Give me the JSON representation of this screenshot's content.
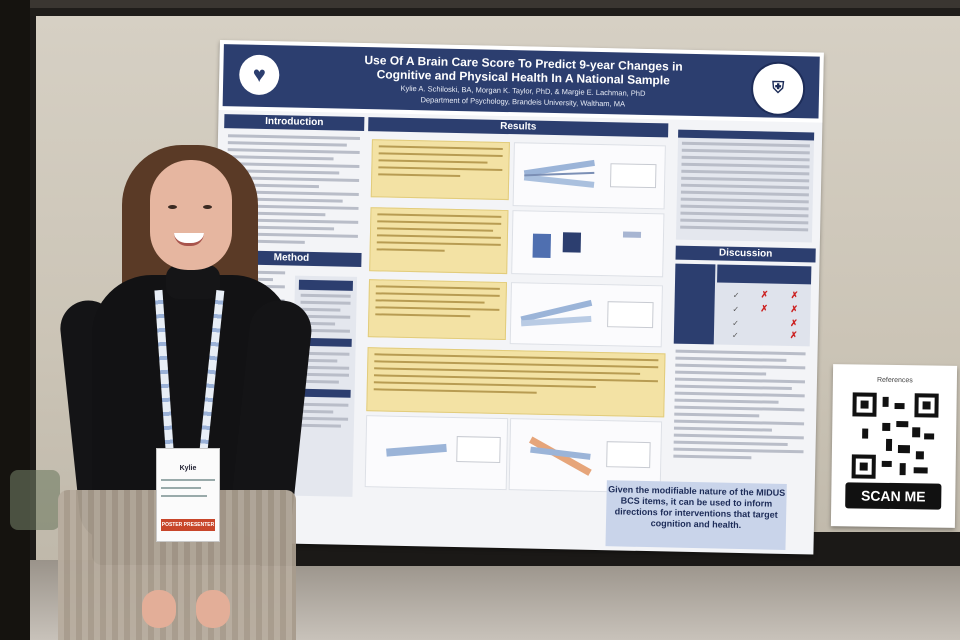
{
  "poster": {
    "title_line1": "Use Of A Brain Care Score To Predict 9-year Changes in",
    "title_line2": "Cognitive and Physical Health In A National Sample",
    "authors": "Kylie A. Schiloski, BA, Morgan K. Taylor, PhD, & Margie E. Lachman, PhD",
    "department": "Department of Psychology, Brandeis University, Waltham, MA",
    "sections": {
      "introduction": "Introduction",
      "method": "Method",
      "results": "Results",
      "discussion": "Discussion"
    },
    "takeaway": "Given the modifiable nature of the MIDUS BCS items, it can be used to inform directions for interventions that target cognition and health."
  },
  "qr_card": {
    "references": "References",
    "scan_label": "SCAN ME"
  },
  "badge": {
    "name": "Kylie",
    "tag": "POSTER PRESENTER"
  },
  "colors": {
    "poster_navy": "#2c3e6f",
    "highlight_yellow": "#f3e2a4",
    "board_beige": "#cbc4b6"
  }
}
